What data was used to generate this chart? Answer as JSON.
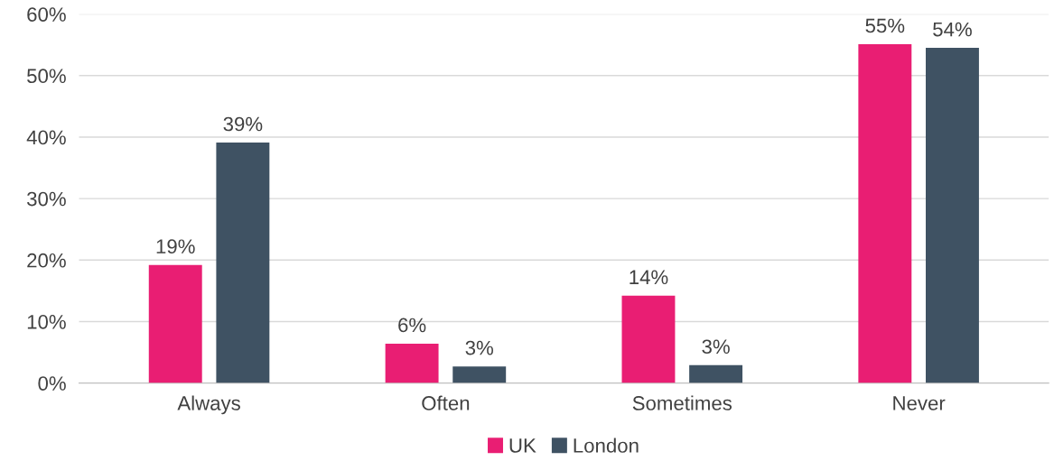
{
  "chart_data": {
    "type": "bar",
    "categories": [
      "Always",
      "Often",
      "Sometimes",
      "Never"
    ],
    "series": [
      {
        "name": "UK",
        "color": "#e91e73",
        "values": [
          19.2,
          6.4,
          14.2,
          55.1
        ],
        "value_labels": [
          "19%",
          "6%",
          "14%",
          "55%"
        ]
      },
      {
        "name": "London",
        "color": "#3f5263",
        "values": [
          39.1,
          2.7,
          2.9,
          54.5
        ],
        "value_labels": [
          "39%",
          "3%",
          "3%",
          "54%"
        ]
      }
    ],
    "ylim": [
      0,
      60
    ],
    "yticks": [
      {
        "value": 0,
        "label": "0%"
      },
      {
        "value": 10,
        "label": "10%"
      },
      {
        "value": 20,
        "label": "20%"
      },
      {
        "value": 30,
        "label": "30%"
      },
      {
        "value": 40,
        "label": "40%"
      },
      {
        "value": 50,
        "label": "50%"
      },
      {
        "value": 60,
        "label": "60%"
      }
    ],
    "grid": "y",
    "legend": "bottom"
  }
}
